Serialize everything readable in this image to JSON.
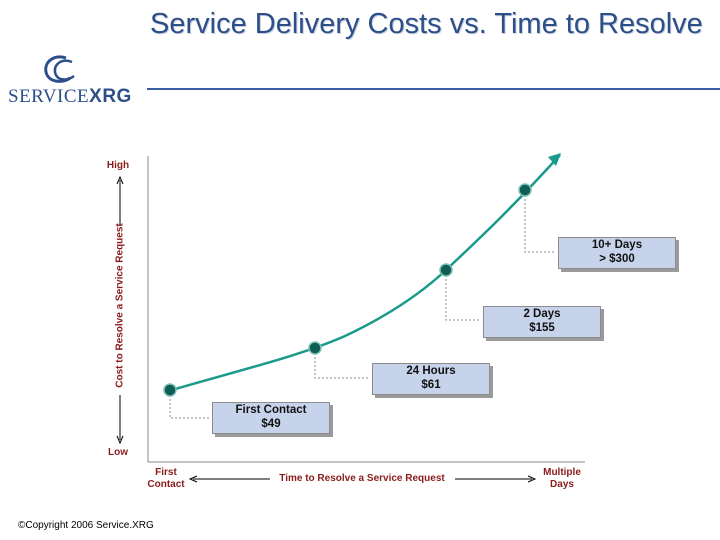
{
  "brand": {
    "logo_text_light": "SERVICE",
    "logo_text_bold": "XRG"
  },
  "slide": {
    "title": "Service Delivery Costs vs. Time to Resolve",
    "copyright": "©Copyright 2006 Service.XRG"
  },
  "colors": {
    "curve": "#1a9a8a",
    "title": "#2c4f8a",
    "axis_text": "#8b1c1c",
    "box_fill": "#c7d3ea"
  },
  "chart_data": {
    "type": "line",
    "xlabel": "Time to Resolve a Service Request",
    "ylabel": "Cost to Resolve a Service Request",
    "y_tick_high": "High",
    "y_tick_low": "Low",
    "x_tick_left": "First Contact",
    "x_tick_right": "Multiple Days",
    "x": [
      "First Contact",
      "24 Hours",
      "2 Days",
      "10+ Days"
    ],
    "values": [
      49,
      61,
      155,
      300
    ],
    "points": [
      {
        "label_line1": "First Contact",
        "label_line2": "$49",
        "cost": 49
      },
      {
        "label_line1": "24 Hours",
        "label_line2": "$61",
        "cost": 61
      },
      {
        "label_line1": "2 Days",
        "label_line2": "$155",
        "cost": 155
      },
      {
        "label_line1": "10+ Days",
        "label_line2": "> $300",
        "cost": 300
      }
    ],
    "axes": "qualitative (no numeric scale)",
    "grid": false
  }
}
